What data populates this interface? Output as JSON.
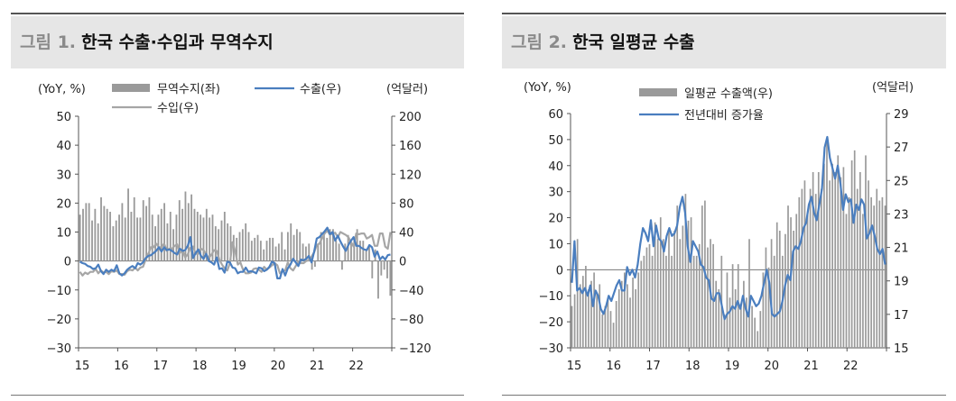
{
  "panels": [
    {
      "title_label": "그림 1.",
      "title_text": "한국 수출·수입과 무역수지",
      "chart_data": {
        "type": "bar",
        "left_axis_label": "(YoY, %)",
        "right_axis_label": "(억달러)",
        "x_ticks": [
          "15",
          "16",
          "17",
          "18",
          "19",
          "20",
          "21",
          "22"
        ],
        "ylim_left": [
          -30,
          50
        ],
        "yticks_left": [
          -30,
          -20,
          -10,
          0,
          10,
          20,
          30,
          40,
          50
        ],
        "ylim_right": [
          -120,
          200
        ],
        "yticks_right": [
          -120,
          -80,
          -40,
          0,
          40,
          80,
          120,
          160,
          200
        ],
        "x_start_year": 2015,
        "x_end_year": 2023,
        "legend": {
          "bar": "무역수지(좌)",
          "line1": "수출(우)",
          "line2": "수입(우)"
        },
        "series_colors": {
          "bar": "#9a9a9a",
          "line1": "#4a7ebf",
          "line2": "#a6a6a6"
        },
        "bar_series": {
          "name": "무역수지(좌)",
          "axis": "left",
          "values": [
            16,
            18,
            20,
            20,
            14,
            18,
            13,
            22,
            19,
            18,
            17,
            12,
            14,
            16,
            20,
            15,
            25,
            17,
            22,
            15,
            15,
            21,
            19,
            22,
            16,
            12,
            16,
            18,
            20,
            13,
            17,
            11,
            16,
            21,
            18,
            24,
            20,
            23,
            18,
            17,
            16,
            15,
            18,
            15,
            16,
            12,
            11,
            14,
            17,
            13,
            12,
            9,
            8,
            10,
            11,
            13,
            10,
            7,
            8,
            9,
            7,
            4,
            7,
            8,
            8,
            5,
            6,
            10,
            4,
            10,
            13,
            9,
            11,
            10,
            6,
            5,
            6,
            -3,
            -2,
            6,
            10,
            9,
            8,
            11,
            11,
            7,
            6,
            -3,
            6,
            9,
            6,
            8,
            11,
            7,
            7,
            4,
            5,
            -6,
            4,
            -13,
            -5,
            -3,
            -6,
            -12
          ]
        },
        "line1_series": {
          "name": "수출(우)",
          "axis": "right",
          "values": [
            -1,
            -3,
            -4,
            -7,
            -8,
            -11,
            -10,
            -5,
            -14,
            -18,
            -12,
            -15,
            -12,
            -14,
            -6,
            -17,
            -20,
            -17,
            -12,
            -9,
            -7,
            -10,
            -3,
            -5,
            -2,
            4,
            7,
            8,
            11,
            14,
            19,
            13,
            19,
            15,
            16,
            14,
            11,
            9,
            17,
            14,
            15,
            21,
            33,
            4,
            11,
            16,
            7,
            3,
            10,
            0,
            -2,
            -5,
            5,
            -11,
            -10,
            -16,
            -1,
            -2,
            -9,
            -10,
            -17,
            -15,
            -15,
            -9,
            -15,
            -14,
            -15,
            -17,
            -9,
            -10,
            -14,
            -12,
            -8,
            -1,
            -3,
            -24,
            -24,
            -11,
            -20,
            -10,
            -5,
            3,
            -2,
            -7,
            2,
            1,
            3,
            7,
            -2,
            13,
            31,
            33,
            37,
            41,
            46,
            37,
            40,
            28,
            35,
            27,
            20,
            14,
            22,
            28,
            33,
            21,
            21,
            18,
            16,
            15,
            22,
            19,
            6,
            13,
            2,
            6,
            2,
            8,
            9
          ]
        },
        "line2_series": {
          "name": "수입(우)",
          "axis": "right",
          "values": [
            -15,
            -20,
            -16,
            -18,
            -15,
            -15,
            -11,
            -17,
            -13,
            -16,
            -15,
            -18,
            -14,
            -15,
            -13,
            -18,
            -18,
            -19,
            -14,
            -12,
            -13,
            -9,
            -13,
            -9,
            -8,
            2,
            10,
            19,
            19,
            24,
            19,
            19,
            24,
            14,
            17,
            17,
            21,
            23,
            11,
            15,
            5,
            9,
            18,
            20,
            10,
            10,
            17,
            15,
            9,
            4,
            9,
            15,
            14,
            2,
            -5,
            -10,
            -13,
            -3,
            26,
            14,
            -5,
            -2,
            -12,
            -17,
            -17,
            -16,
            -11,
            -10,
            -12,
            -15,
            -8,
            -12,
            -9,
            -6,
            -3,
            -6,
            -17,
            -14,
            -13,
            -2,
            -10,
            -13,
            -7,
            -1,
            -3,
            -3,
            0,
            1,
            6,
            12,
            22,
            24,
            31,
            38,
            42,
            36,
            38,
            39,
            33,
            40,
            38,
            36,
            33,
            26,
            20,
            38,
            37,
            38,
            38,
            31,
            33,
            36,
            21,
            21,
            38,
            38,
            20,
            17,
            40
          ]
        }
      }
    },
    {
      "title_label": "그림 2.",
      "title_text": "한국 일평균 수출",
      "chart_data": {
        "type": "bar",
        "left_axis_label": "(YoY, %)",
        "right_axis_label": "(억달러)",
        "x_ticks": [
          "15",
          "16",
          "17",
          "18",
          "19",
          "20",
          "21",
          "22"
        ],
        "ylim_left": [
          -30,
          60
        ],
        "yticks_left": [
          -30,
          -20,
          -10,
          0,
          10,
          20,
          30,
          40,
          50,
          60
        ],
        "ylim_right": [
          15,
          29
        ],
        "yticks_right": [
          15,
          17,
          19,
          21,
          23,
          25,
          27,
          29
        ],
        "x_start_year": 2015,
        "x_end_year": 2023,
        "legend": {
          "bar": "일평균 수출액(우)",
          "line1": "전년대비 증가율"
        },
        "series_colors": {
          "bar": "#9a9a9a",
          "line1": "#4a7ebf"
        },
        "bar_series": {
          "name": "일평균 수출액(우)",
          "axis": "right",
          "values": [
            17.5,
            18.2,
            21.5,
            18.8,
            19.3,
            19.9,
            18.5,
            19.0,
            19.5,
            18.3,
            18.8,
            17.0,
            17.5,
            18.0,
            17.2,
            16.5,
            17.8,
            18.5,
            19.0,
            19.5,
            18.8,
            18.0,
            19.2,
            18.5,
            19.5,
            20.2,
            20.5,
            21.0,
            21.2,
            20.5,
            22.5,
            21.5,
            22.8,
            21.5,
            20.5,
            22.0,
            20.5,
            22.0,
            23.5,
            21.5,
            22.3,
            24.2,
            22.6,
            22.8,
            20.5,
            20.5,
            21.2,
            23.5,
            23.8,
            21.0,
            21.5,
            21.2,
            19.0,
            18.5,
            20.5,
            17.0,
            19.5,
            18.0,
            20.0,
            18.5,
            20.0,
            17.5,
            19.0,
            18.0,
            21.5,
            17.5,
            16.8,
            16.0,
            17.2,
            19.5,
            21.0,
            19.8,
            21.5,
            20.5,
            22.5,
            22.0,
            20.5,
            21.8,
            23.5,
            22.8,
            22.0,
            23.0,
            24.0,
            24.5,
            25.0,
            23.0,
            24.5,
            25.5,
            24.2,
            25.5,
            24.5,
            26.0,
            27.5,
            25.0,
            26.0,
            25.5,
            26.5,
            25.2,
            25.8,
            23.0,
            24.0,
            26.2,
            26.8,
            24.5,
            25.5,
            23.0,
            26.5,
            25.0,
            24.0,
            23.5,
            24.5,
            23.8,
            24.0,
            23.5
          ]
        },
        "line1_series": {
          "name": "전년대비 증가율",
          "axis": "left",
          "values": [
            -5,
            11,
            -8,
            -7,
            -9,
            -7,
            -10,
            -6,
            -14,
            -8,
            -10,
            -15,
            -17,
            -14,
            -10,
            -12,
            -9,
            -6,
            -4,
            -8,
            -8,
            1,
            -2,
            0,
            -3,
            2,
            10,
            16,
            14,
            11,
            19,
            9,
            17,
            12,
            11,
            7,
            13,
            16,
            13,
            14,
            17,
            24,
            28,
            22,
            9,
            3,
            11,
            9,
            7,
            2,
            1,
            -3,
            -4,
            -11,
            -12,
            -9,
            -9,
            -14,
            -19,
            -17,
            -16,
            -14,
            -15,
            -12,
            -15,
            -10,
            -15,
            -18,
            -10,
            -12,
            -14,
            -13,
            -10,
            -5,
            0,
            -5,
            -17,
            -18,
            -17,
            -16,
            -12,
            -6,
            -2,
            -4,
            7,
            9,
            8,
            11,
            16,
            18,
            25,
            28,
            22,
            19,
            25,
            31,
            47,
            51,
            43,
            39,
            35,
            40,
            33,
            23,
            29,
            26,
            27,
            18,
            25,
            23,
            27,
            25,
            12,
            14,
            17,
            13,
            8,
            6,
            8,
            2
          ]
        }
      }
    }
  ]
}
